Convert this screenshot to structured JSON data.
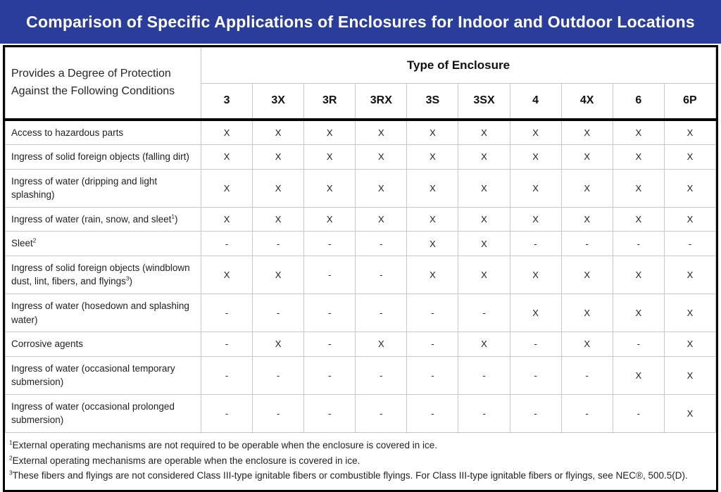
{
  "title": "Comparison of Specific Applications of Enclosures for Indoor and Outdoor Locations",
  "colors": {
    "title_bar_bg": "#2B3D9B",
    "title_text": "#FFFFFF",
    "frame_border": "#050505",
    "grid_line": "#C7C7C7",
    "body_text": "#1A1A1A"
  },
  "chart_data": {
    "type": "table",
    "title": "Comparison of Specific Applications of Enclosures for Indoor and Outdoor Locations",
    "row_header": "Provides a Degree of Protection Against the Following Conditions",
    "group_header": "Type of Enclosure",
    "columns": [
      "3",
      "3X",
      "3R",
      "3RX",
      "3S",
      "3SX",
      "4",
      "4X",
      "6",
      "6P"
    ],
    "rows": [
      {
        "label": "Access to hazardous parts",
        "sup": "",
        "label_end": "",
        "values": [
          "X",
          "X",
          "X",
          "X",
          "X",
          "X",
          "X",
          "X",
          "X",
          "X"
        ]
      },
      {
        "label": "Ingress of solid foreign objects (falling dirt)",
        "sup": "",
        "label_end": "",
        "values": [
          "X",
          "X",
          "X",
          "X",
          "X",
          "X",
          "X",
          "X",
          "X",
          "X"
        ]
      },
      {
        "label": "Ingress of water (dripping and light splashing)",
        "sup": "",
        "label_end": "",
        "values": [
          "X",
          "X",
          "X",
          "X",
          "X",
          "X",
          "X",
          "X",
          "X",
          "X"
        ]
      },
      {
        "label": "Ingress of water (rain, snow, and sleet",
        "sup": "1",
        "label_end": ")",
        "values": [
          "X",
          "X",
          "X",
          "X",
          "X",
          "X",
          "X",
          "X",
          "X",
          "X"
        ]
      },
      {
        "label": "Sleet",
        "sup": "2",
        "label_end": "",
        "values": [
          "-",
          "-",
          "-",
          "-",
          "X",
          "X",
          "-",
          "-",
          "-",
          "-"
        ]
      },
      {
        "label": "Ingress of solid foreign objects (windblown dust, lint, fibers, and flyings",
        "sup": "3",
        "label_end": ")",
        "values": [
          "X",
          "X",
          "-",
          "-",
          "X",
          "X",
          "X",
          "X",
          "X",
          "X"
        ]
      },
      {
        "label": "Ingress of water (hosedown and splashing water)",
        "sup": "",
        "label_end": "",
        "values": [
          "-",
          "-",
          "-",
          "-",
          "-",
          "-",
          "X",
          "X",
          "X",
          "X"
        ]
      },
      {
        "label": "Corrosive agents",
        "sup": "",
        "label_end": "",
        "values": [
          "-",
          "X",
          "-",
          "X",
          "-",
          "X",
          "-",
          "X",
          "-",
          "X"
        ]
      },
      {
        "label": "Ingress of water (occasional temporary submersion)",
        "sup": "",
        "label_end": "",
        "values": [
          "-",
          "-",
          "-",
          "-",
          "-",
          "-",
          "-",
          "-",
          "X",
          "X"
        ]
      },
      {
        "label": "Ingress of water (occasional prolonged submersion)",
        "sup": "",
        "label_end": "",
        "values": [
          "-",
          "-",
          "-",
          "-",
          "-",
          "-",
          "-",
          "-",
          "-",
          "X"
        ]
      }
    ],
    "footnotes": [
      {
        "sup": "1",
        "text": "External operating mechanisms are not required to be operable when the enclosure is covered in ice."
      },
      {
        "sup": "2",
        "text": "External operating mechanisms are operable when the enclosure is covered in ice."
      },
      {
        "sup": "3",
        "text": "These fibers and flyings are not considered Class III-type ignitable fibers or combustible flyings. For Class III-type ignitable fibers or flyings, see NEC®, 500.5(D)."
      }
    ]
  }
}
